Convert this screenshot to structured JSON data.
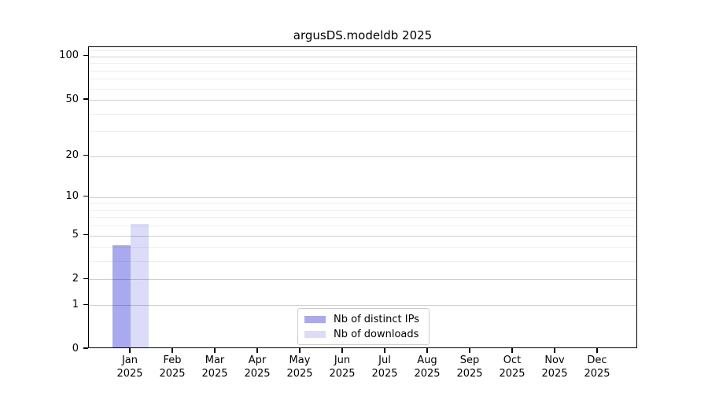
{
  "chart_data": {
    "type": "bar",
    "title": "argusDS.modeldb 2025",
    "xlabel": "",
    "ylabel": "",
    "categories": [
      "Jan",
      "Feb",
      "Mar",
      "Apr",
      "May",
      "Jun",
      "Jul",
      "Aug",
      "Sep",
      "Oct",
      "Nov",
      "Dec"
    ],
    "category_year": "2025",
    "series": [
      {
        "name": "Nb of distinct IPs",
        "color": "#a9a9ef",
        "values": [
          4,
          0,
          0,
          0,
          0,
          0,
          0,
          0,
          0,
          0,
          0,
          0
        ]
      },
      {
        "name": "Nb of downloads",
        "color": "#dcdcf8",
        "values": [
          6,
          0,
          0,
          0,
          0,
          0,
          0,
          0,
          0,
          0,
          0,
          0
        ]
      }
    ],
    "y_axis": {
      "scale": "log1p",
      "ticks": [
        0,
        1,
        2,
        5,
        10,
        20,
        50,
        100
      ],
      "minor_gridlines": [
        3,
        4,
        6,
        7,
        8,
        9,
        30,
        40,
        60,
        70,
        80,
        90,
        110
      ],
      "ylim": [
        0,
        116
      ]
    },
    "grid": "horizontal",
    "legend_position": "lower center"
  }
}
